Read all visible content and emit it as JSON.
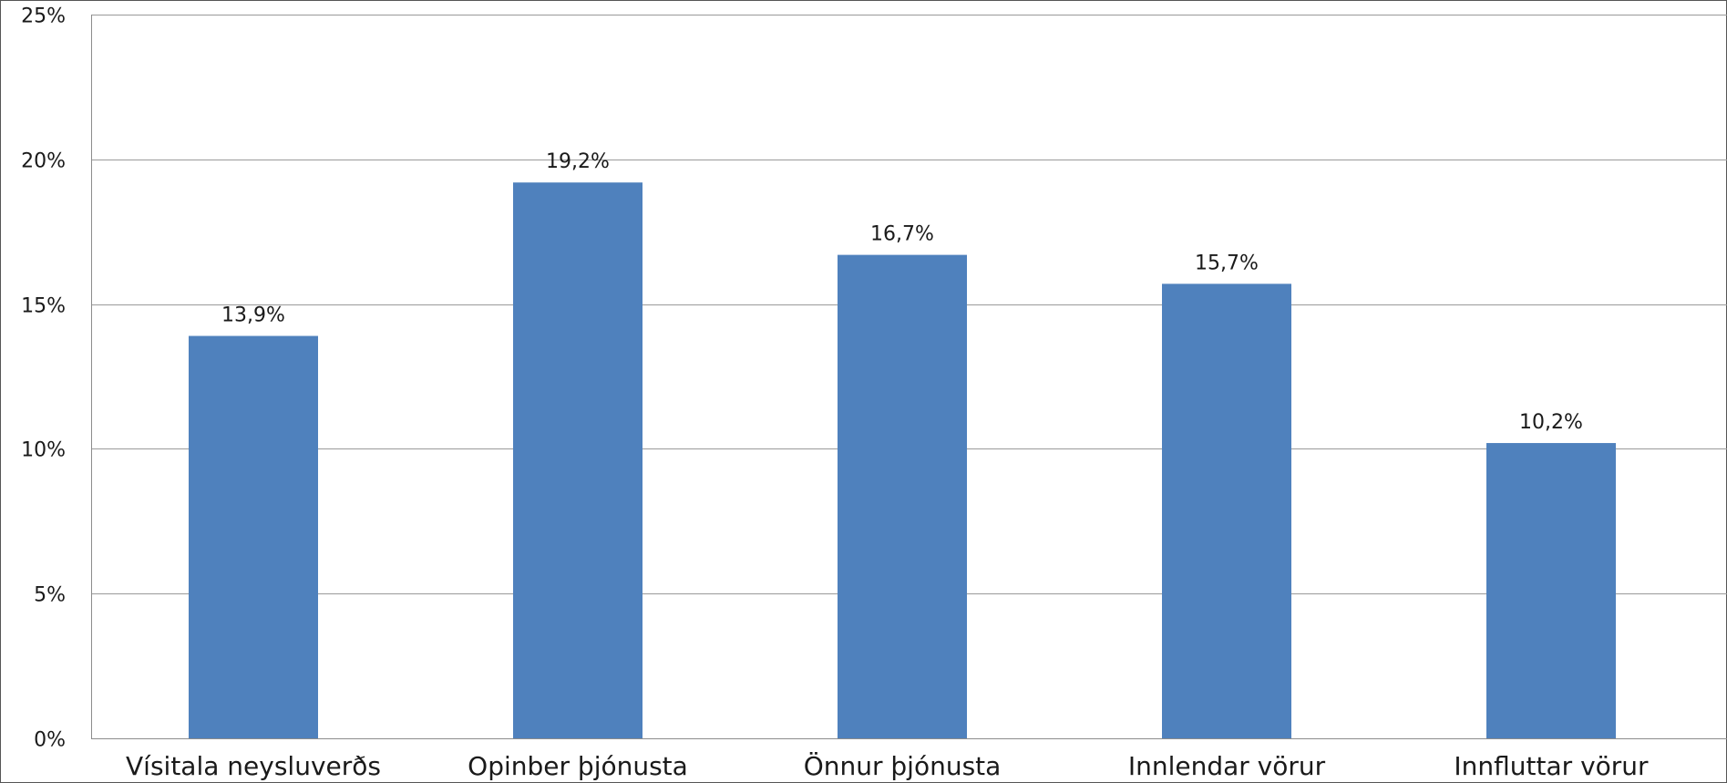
{
  "chart_data": {
    "type": "bar",
    "categories": [
      "Vísitala neysluverðs",
      "Opinber þjónusta",
      "Önnur þjónusta",
      "Innlendar vörur",
      "Innfluttar vörur"
    ],
    "values": [
      13.9,
      19.2,
      16.7,
      15.7,
      10.2
    ],
    "data_labels": [
      "13,9%",
      "19,2%",
      "16,7%",
      "15,7%",
      "10,2%"
    ],
    "y_ticks": [
      0,
      5,
      10,
      15,
      20,
      25
    ],
    "y_tick_labels": [
      "0%",
      "5%",
      "10%",
      "15%",
      "20%",
      "25%"
    ],
    "ylim": [
      0,
      25
    ],
    "grid": true,
    "legend": "none",
    "colors": {
      "bar": "#4f81bd",
      "grid": "#9a9a9a",
      "axis": "#8c8c8c"
    }
  }
}
